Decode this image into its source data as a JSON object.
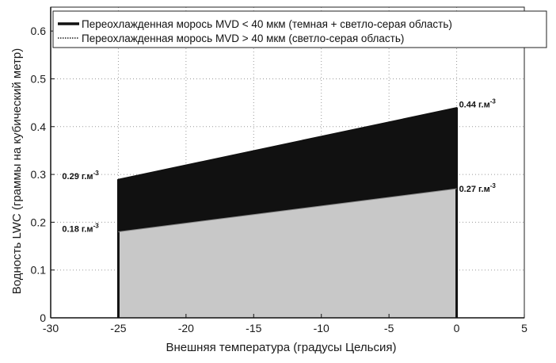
{
  "chart_data": {
    "type": "area",
    "xlabel": "Внешняя температура (градусы Цельсия)",
    "ylabel": "Водность LWC (граммы на кубический метр)",
    "xlim": [
      -30,
      5
    ],
    "ylim": [
      0,
      0.65
    ],
    "xticks": [
      -30,
      -25,
      -20,
      -15,
      -10,
      -5,
      0,
      5
    ],
    "yticks": [
      0,
      0.1,
      0.2,
      0.3,
      0.4,
      0.5,
      0.6
    ],
    "xtick_labels": [
      "-30",
      "-25",
      "-20",
      "-15",
      "-10",
      "-5",
      "0",
      "5"
    ],
    "ytick_labels": [
      "0",
      "0.1",
      "0.2",
      "0.3",
      "0.4",
      "0.5",
      "0.6"
    ],
    "grid": true,
    "legend_position": "top",
    "series": [
      {
        "name": "Переохлажденная морось MVD < 40 мкм (темная + светло-серая область)",
        "x": [
          -25,
          0
        ],
        "y": [
          0.29,
          0.44
        ],
        "color": "#111111",
        "line_style": "solid"
      },
      {
        "name": "Переохлажденная морось MVD > 40 мкм (светло-серая область)",
        "x": [
          -25,
          0
        ],
        "y": [
          0.18,
          0.27
        ],
        "color": "#c8c8c8",
        "line_style": "dotted"
      }
    ],
    "annotations": [
      {
        "text": "0.29 г.м",
        "sup": "-3",
        "at": "left of x=-25",
        "y": 0.29
      },
      {
        "text": "0.18 г.м",
        "sup": "-3",
        "at": "left of x=-25",
        "y": 0.18
      },
      {
        "text": "0.44 г.м",
        "sup": "-3",
        "at": "right of x=0",
        "y": 0.44
      },
      {
        "text": "0.27 г.м",
        "sup": "-3",
        "at": "right of x=0",
        "y": 0.27
      }
    ]
  }
}
